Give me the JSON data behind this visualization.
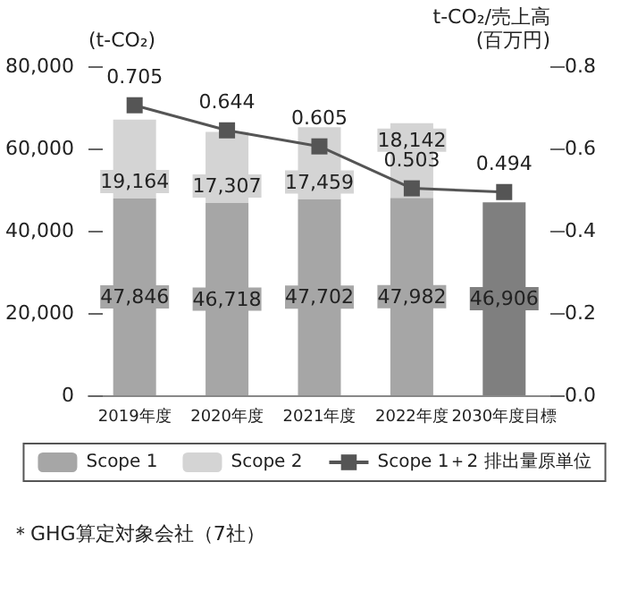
{
  "chart_data": {
    "type": "bar",
    "stacked": true,
    "ylabel": "(t-CO₂)",
    "y2label": "t-CO₂/売上高\n(百万円)",
    "categories": [
      "2019年度",
      "2020年度",
      "2021年度",
      "2022年度",
      "2030年度目標"
    ],
    "series": [
      {
        "name": "Scope 1",
        "color": "#a6a6a6",
        "colors": [
          "#a6a6a6",
          "#a6a6a6",
          "#a6a6a6",
          "#a6a6a6",
          "#7f7f7f"
        ],
        "values": [
          47846,
          46718,
          47702,
          47982,
          46906
        ],
        "value_labels": [
          "47,846",
          "46,718",
          "47,702",
          "47,982",
          "46,906"
        ]
      },
      {
        "name": "Scope 2",
        "color": "#d4d4d4",
        "values": [
          19164,
          17307,
          17459,
          18142,
          null
        ],
        "value_labels": [
          "19,164",
          "17,307",
          "17,459",
          "18,142",
          null
        ]
      },
      {
        "name": "Scope 1＋2 排出量原単位",
        "type": "line",
        "axis": "y2",
        "color": "#555555",
        "marker": "square",
        "values": [
          0.705,
          0.644,
          0.605,
          0.503,
          0.494
        ]
      }
    ],
    "ylim": [
      0,
      80000
    ],
    "yticks": [
      {
        "value": 0,
        "label": "0"
      },
      {
        "value": 20000,
        "label": "20,000"
      },
      {
        "value": 40000,
        "label": "40,000"
      },
      {
        "value": 60000,
        "label": "60,000"
      },
      {
        "value": 80000,
        "label": "80,000"
      }
    ],
    "y2lim": [
      0,
      0.8
    ],
    "y2ticks": [
      {
        "value": 0,
        "label": "0.0"
      },
      0.2,
      0.4,
      0.6,
      0.8
    ],
    "data_labels": true,
    "grid": false,
    "legend": "bottom",
    "annotations": [
      "＊GHG算定対象会社（7社）"
    ]
  }
}
